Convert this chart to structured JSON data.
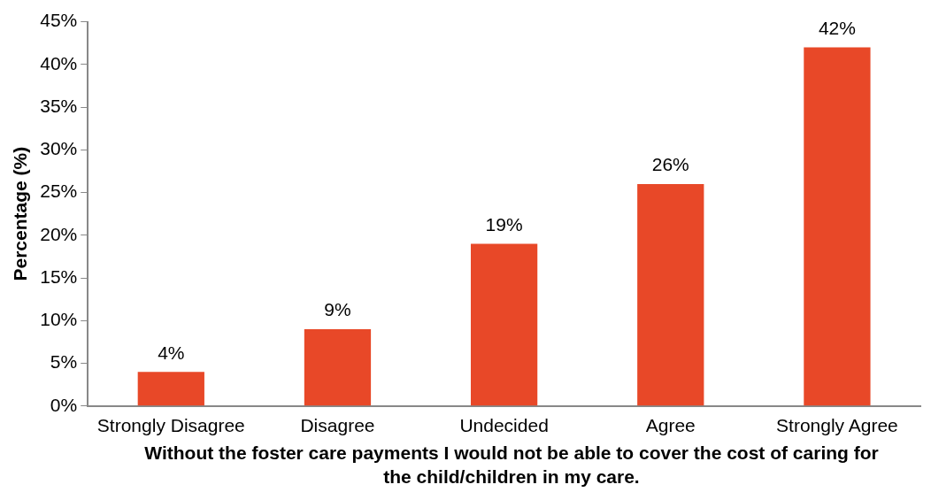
{
  "chart_data": {
    "type": "bar",
    "categories": [
      "Strongly Disagree",
      "Disagree",
      "Undecided",
      "Agree",
      "Strongly Agree"
    ],
    "values": [
      4,
      9,
      19,
      26,
      42
    ],
    "value_labels": [
      "4%",
      "9%",
      "19%",
      "26%",
      "42%"
    ],
    "color": "#e84828",
    "xlabel": "Without the foster care payments I would not be able to cover the cost of caring for the child/children in my care.",
    "ylabel": "Percentage (%)",
    "ylim": [
      0,
      45
    ],
    "yticks": [
      {
        "value": 0,
        "label": "0%"
      },
      {
        "value": 5,
        "label": "5%"
      },
      {
        "value": 10,
        "label": "10%"
      },
      {
        "value": 15,
        "label": "15%"
      },
      {
        "value": 20,
        "label": "20%"
      },
      {
        "value": 25,
        "label": "25%"
      },
      {
        "value": 30,
        "label": "30%"
      },
      {
        "value": 35,
        "label": "35%"
      },
      {
        "value": 40,
        "label": "40%"
      },
      {
        "value": 45,
        "label": "45%"
      }
    ],
    "grid": false,
    "legend": false
  }
}
